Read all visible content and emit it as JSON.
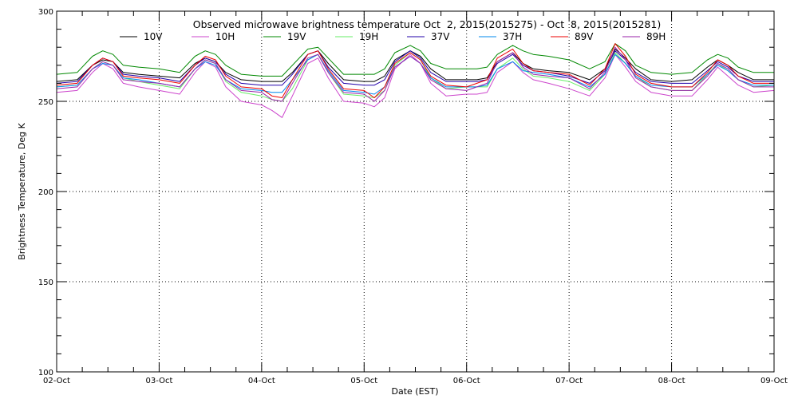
{
  "chart_data": {
    "type": "line",
    "title": "Observed microwave brightness temperature Oct  2, 2015(2015275) - Oct  8, 2015(2015281)",
    "xlabel": "Date (EST)",
    "ylabel": "Brightness Temperature, Deg K",
    "x_ticks": [
      "02-Oct",
      "03-Oct",
      "04-Oct",
      "05-Oct",
      "06-Oct",
      "07-Oct",
      "08-Oct",
      "09-Oct"
    ],
    "xlim_days": [
      0,
      7
    ],
    "y_ticks": [
      "100",
      "150",
      "200",
      "250",
      "300"
    ],
    "ylim": [
      100,
      300
    ],
    "grid": "dotted",
    "legend_position": "top",
    "x_days": [
      0,
      0.2,
      0.35,
      0.45,
      0.55,
      0.65,
      0.8,
      1.0,
      1.2,
      1.35,
      1.45,
      1.55,
      1.65,
      1.8,
      2.0,
      2.1,
      2.2,
      2.3,
      2.45,
      2.55,
      2.65,
      2.8,
      3.0,
      3.1,
      3.2,
      3.3,
      3.45,
      3.55,
      3.65,
      3.8,
      4.0,
      4.1,
      4.2,
      4.3,
      4.45,
      4.55,
      4.65,
      4.8,
      5.0,
      5.2,
      5.35,
      5.45,
      5.55,
      5.65,
      5.8,
      6.0,
      6.2,
      6.35,
      6.45,
      6.55,
      6.65,
      6.8,
      7.0
    ],
    "series": [
      {
        "name": "10V",
        "color": "#000000",
        "values": [
          261,
          262,
          270,
          273,
          272,
          266,
          265,
          264,
          263,
          271,
          274,
          272,
          266,
          262,
          261,
          261,
          261,
          266,
          276,
          278,
          271,
          262,
          261,
          261,
          264,
          273,
          278,
          275,
          268,
          262,
          262,
          262,
          263,
          272,
          277,
          271,
          268,
          267,
          266,
          262,
          268,
          279,
          274,
          268,
          262,
          261,
          262,
          269,
          273,
          270,
          266,
          262,
          262
        ]
      },
      {
        "name": "10H",
        "color": "#cc44cc",
        "values": [
          255,
          256,
          266,
          271,
          268,
          260,
          258,
          256,
          254,
          266,
          272,
          269,
          258,
          250,
          248,
          245,
          241,
          253,
          271,
          274,
          263,
          250,
          249,
          247,
          252,
          268,
          276,
          271,
          260,
          253,
          254,
          254,
          255,
          266,
          272,
          266,
          262,
          260,
          257,
          253,
          263,
          276,
          269,
          261,
          255,
          253,
          253,
          262,
          269,
          264,
          259,
          255,
          256
        ]
      },
      {
        "name": "19V",
        "color": "#008800",
        "values": [
          265,
          266,
          275,
          278,
          276,
          270,
          269,
          268,
          266,
          275,
          278,
          276,
          270,
          265,
          264,
          264,
          264,
          270,
          279,
          280,
          274,
          265,
          265,
          265,
          268,
          277,
          281,
          278,
          271,
          268,
          268,
          268,
          269,
          276,
          281,
          278,
          276,
          275,
          273,
          268,
          272,
          282,
          278,
          270,
          266,
          265,
          266,
          273,
          276,
          274,
          269,
          266,
          266
        ]
      },
      {
        "name": "19H",
        "color": "#66ee66",
        "values": [
          258,
          259,
          268,
          272,
          270,
          263,
          261,
          259,
          257,
          268,
          273,
          271,
          261,
          255,
          253,
          251,
          250,
          257,
          273,
          276,
          266,
          254,
          253,
          252,
          256,
          270,
          277,
          273,
          263,
          257,
          258,
          258,
          258,
          268,
          274,
          268,
          264,
          263,
          261,
          256,
          265,
          277,
          271,
          264,
          258,
          256,
          256,
          265,
          271,
          267,
          262,
          258,
          259
        ]
      },
      {
        "name": "37V",
        "color": "#2200aa",
        "values": [
          260,
          261,
          270,
          274,
          272,
          265,
          264,
          263,
          261,
          270,
          274,
          272,
          265,
          260,
          259,
          259,
          259,
          265,
          276,
          278,
          269,
          260,
          259,
          259,
          262,
          272,
          278,
          274,
          266,
          261,
          261,
          261,
          262,
          271,
          276,
          270,
          267,
          266,
          264,
          260,
          267,
          278,
          273,
          266,
          261,
          260,
          260,
          267,
          272,
          269,
          264,
          261,
          261
        ]
      },
      {
        "name": "37H",
        "color": "#0088ee",
        "values": [
          258,
          259,
          268,
          271,
          270,
          263,
          262,
          260,
          258,
          268,
          272,
          270,
          262,
          257,
          256,
          255,
          255,
          262,
          273,
          276,
          267,
          256,
          255,
          254,
          258,
          269,
          275,
          271,
          263,
          258,
          258,
          258,
          259,
          268,
          272,
          267,
          266,
          265,
          263,
          258,
          265,
          276,
          271,
          264,
          259,
          258,
          258,
          265,
          270,
          267,
          262,
          259,
          259
        ]
      },
      {
        "name": "89V",
        "color": "#ee0000",
        "values": [
          259,
          260,
          270,
          274,
          272,
          264,
          263,
          262,
          260,
          270,
          275,
          273,
          264,
          258,
          257,
          253,
          252,
          262,
          276,
          278,
          268,
          257,
          256,
          252,
          258,
          271,
          277,
          273,
          264,
          259,
          258,
          260,
          262,
          274,
          279,
          271,
          267,
          266,
          265,
          259,
          268,
          282,
          275,
          265,
          260,
          258,
          258,
          266,
          273,
          270,
          264,
          260,
          260
        ]
      },
      {
        "name": "89H",
        "color": "#9922aa",
        "values": [
          257,
          258,
          268,
          272,
          270,
          262,
          261,
          260,
          258,
          268,
          273,
          271,
          262,
          256,
          255,
          251,
          250,
          260,
          274,
          276,
          266,
          255,
          254,
          250,
          256,
          269,
          275,
          271,
          262,
          257,
          256,
          258,
          260,
          272,
          277,
          269,
          265,
          264,
          263,
          257,
          266,
          280,
          273,
          263,
          258,
          256,
          256,
          264,
          271,
          268,
          262,
          258,
          258
        ]
      }
    ]
  }
}
